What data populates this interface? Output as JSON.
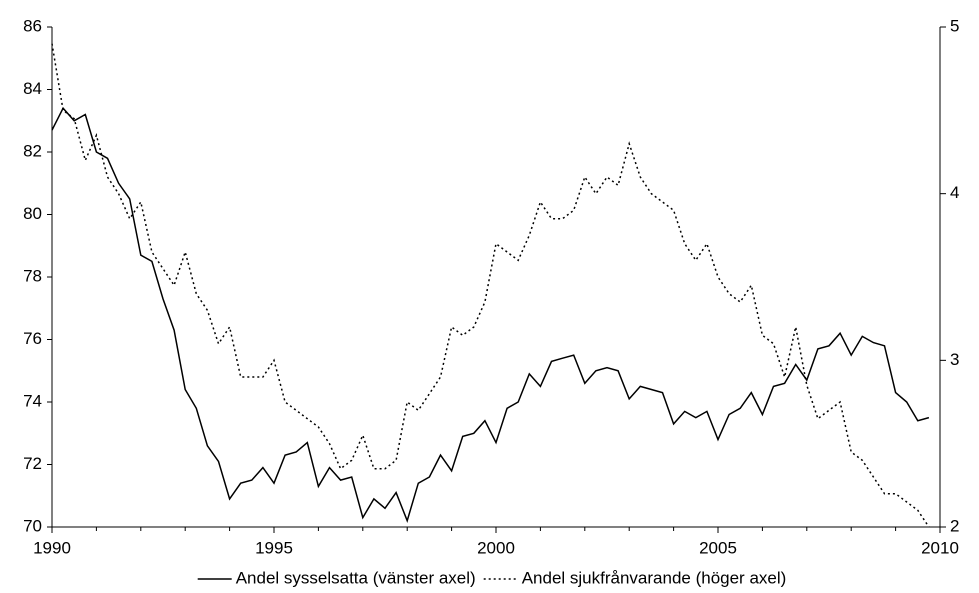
{
  "chart_data": {
    "type": "line",
    "x": [
      1990,
      1990.25,
      1990.5,
      1990.75,
      1991,
      1991.25,
      1991.5,
      1991.75,
      1992,
      1992.25,
      1992.5,
      1992.75,
      1993,
      1993.25,
      1993.5,
      1993.75,
      1994,
      1994.25,
      1994.5,
      1994.75,
      1995,
      1995.25,
      1995.5,
      1995.75,
      1996,
      1996.25,
      1996.5,
      1996.75,
      1997,
      1997.25,
      1997.5,
      1997.75,
      1998,
      1998.25,
      1998.5,
      1998.75,
      1999,
      1999.25,
      1999.5,
      1999.75,
      2000,
      2000.25,
      2000.5,
      2000.75,
      2001,
      2001.25,
      2001.5,
      2001.75,
      2002,
      2002.25,
      2002.5,
      2002.75,
      2003,
      2003.25,
      2003.5,
      2003.75,
      2004,
      2004.25,
      2004.5,
      2004.75,
      2005,
      2005.25,
      2005.5,
      2005.75,
      2006,
      2006.25,
      2006.5,
      2006.75,
      2007,
      2007.25,
      2007.5,
      2007.75,
      2008,
      2008.25,
      2008.5,
      2008.75,
      2009,
      2009.25,
      2009.5,
      2009.75
    ],
    "series": [
      {
        "name": "Andel sysselsatta (vänster axel)",
        "color": "#000000",
        "line_style": "solid",
        "values": [
          82.7,
          83.4,
          83.0,
          83.2,
          82.0,
          81.8,
          81.0,
          80.5,
          78.7,
          78.5,
          77.3,
          76.3,
          74.4,
          73.8,
          72.6,
          72.1,
          70.9,
          71.4,
          71.5,
          71.9,
          71.4,
          72.3,
          72.4,
          72.7,
          71.3,
          71.9,
          71.5,
          71.6,
          70.3,
          70.9,
          70.6,
          71.1,
          70.2,
          71.4,
          71.6,
          72.3,
          71.8,
          72.9,
          73.0,
          73.4,
          72.7,
          73.8,
          74.0,
          74.9,
          74.5,
          75.3,
          75.4,
          75.5,
          74.6,
          75.0,
          75.1,
          75.0,
          74.1,
          74.5,
          74.4,
          74.3,
          73.3,
          73.7,
          73.5,
          73.7,
          72.8,
          73.6,
          73.8,
          74.3,
          73.6,
          74.5,
          74.6,
          75.2,
          74.7,
          75.7,
          75.8,
          76.2,
          75.5,
          76.1,
          75.9,
          75.8,
          74.3,
          74.0,
          73.4,
          73.5
        ]
      },
      {
        "name": "Andel sjukfrånvarande (höger axel)",
        "color": "#000000",
        "line_style": "dotted",
        "axis": "y2",
        "values": [
          4.9,
          4.5,
          4.45,
          4.2,
          4.35,
          4.1,
          4.0,
          3.85,
          3.95,
          3.65,
          3.55,
          3.45,
          3.65,
          3.4,
          3.3,
          3.1,
          3.2,
          2.9,
          2.9,
          2.9,
          3.0,
          2.75,
          2.7,
          2.65,
          2.6,
          2.5,
          2.35,
          2.4,
          2.55,
          2.35,
          2.35,
          2.4,
          2.75,
          2.7,
          2.8,
          2.9,
          3.2,
          3.15,
          3.2,
          3.35,
          3.7,
          3.65,
          3.6,
          3.75,
          3.95,
          3.85,
          3.85,
          3.9,
          4.1,
          4.0,
          4.1,
          4.05,
          4.3,
          4.1,
          4.0,
          3.95,
          3.9,
          3.7,
          3.6,
          3.7,
          3.5,
          3.4,
          3.35,
          3.45,
          3.15,
          3.1,
          2.9,
          3.2,
          2.85,
          2.65,
          2.7,
          2.75,
          2.45,
          2.4,
          2.3,
          2.2,
          2.2,
          2.15,
          2.1,
          2.0
        ]
      }
    ],
    "xlim": [
      1990,
      2010
    ],
    "xticks": [
      1990,
      1995,
      2000,
      2005,
      2010
    ],
    "xminorticks": [
      1991,
      1992,
      1993,
      1994,
      1996,
      1997,
      1998,
      1999,
      2001,
      2002,
      2003,
      2004,
      2006,
      2007,
      2008,
      2009
    ],
    "ylim": [
      70,
      86
    ],
    "yticks": [
      70,
      72,
      74,
      76,
      78,
      80,
      82,
      84,
      86
    ],
    "y2lim": [
      2,
      5
    ],
    "y2ticks": [
      2,
      3,
      4,
      5
    ],
    "legend": "bottom"
  }
}
